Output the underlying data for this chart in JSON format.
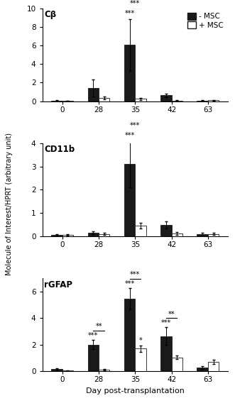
{
  "subplots": [
    {
      "title": "Cβ",
      "ylim": [
        0,
        10
      ],
      "yticks": [
        0,
        2,
        4,
        6,
        8,
        10
      ],
      "minus_msc": [
        0.05,
        1.45,
        6.05,
        0.65,
        0.08
      ],
      "minus_msc_err": [
        0.05,
        0.9,
        2.8,
        0.2,
        0.05
      ],
      "plus_msc": [
        0.05,
        0.35,
        0.25,
        0.08,
        0.1
      ],
      "plus_msc_err": [
        0.03,
        0.15,
        0.1,
        0.04,
        0.05
      ]
    },
    {
      "title": "CD11b",
      "ylim": [
        0,
        4
      ],
      "yticks": [
        0,
        1,
        2,
        3,
        4
      ],
      "minus_msc": [
        0.05,
        0.15,
        3.1,
        0.5,
        0.1
      ],
      "minus_msc_err": [
        0.03,
        0.05,
        1.0,
        0.15,
        0.04
      ],
      "plus_msc": [
        0.05,
        0.1,
        0.45,
        0.12,
        0.1
      ],
      "plus_msc_err": [
        0.03,
        0.05,
        0.12,
        0.06,
        0.04
      ]
    },
    {
      "title": "rGFAP",
      "ylim": [
        0,
        7
      ],
      "yticks": [
        0,
        2,
        4,
        6
      ],
      "minus_msc": [
        0.15,
        2.0,
        5.45,
        2.65,
        0.3
      ],
      "minus_msc_err": [
        0.1,
        0.35,
        0.8,
        0.65,
        0.1
      ],
      "plus_msc": [
        0.05,
        0.1,
        1.7,
        1.05,
        0.7
      ],
      "plus_msc_err": [
        0.03,
        0.05,
        0.25,
        0.15,
        0.15
      ]
    }
  ],
  "days": [
    0,
    28,
    35,
    42,
    63
  ],
  "xlabel": "Day post-transplantation",
  "ylabel": "Molecule of Interest/HPRT (arbitrary unit)",
  "bar_width": 0.3,
  "minus_color": "#1a1a1a",
  "plus_color": "#ffffff",
  "plus_edgecolor": "#1a1a1a",
  "legend_minus": "- MSC",
  "legend_plus": "+ MSC"
}
